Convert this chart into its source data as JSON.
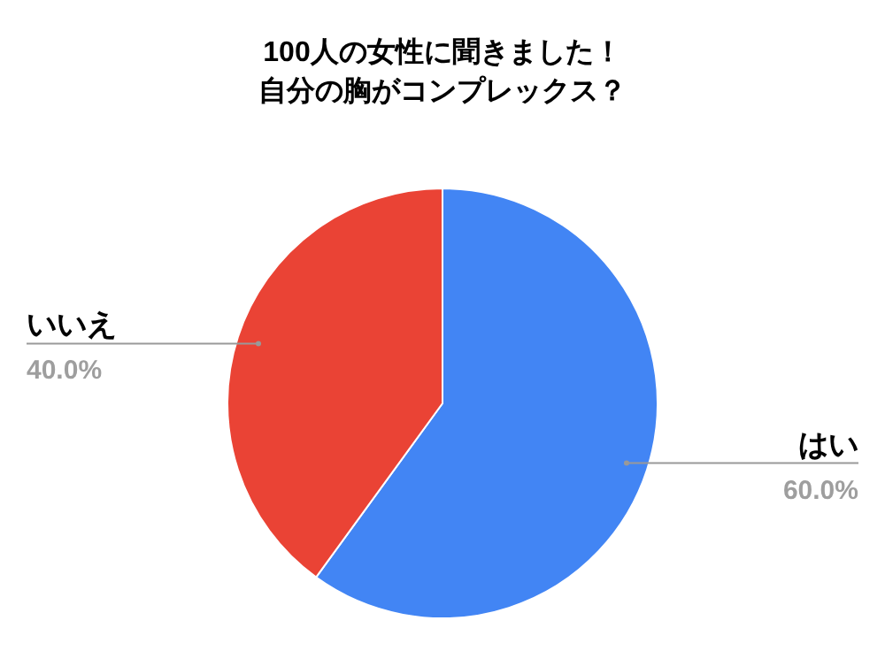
{
  "chart_data": {
    "type": "pie",
    "title": "100人の女性に聞きました！自分の胸がコンプレックス？",
    "categories": [
      "はい",
      "いいえ"
    ],
    "values": [
      60,
      40
    ],
    "colors": [
      "#4285f4",
      "#ea4335"
    ],
    "value_labels": [
      "60.0%",
      "40.0%"
    ],
    "legend": false
  }
}
